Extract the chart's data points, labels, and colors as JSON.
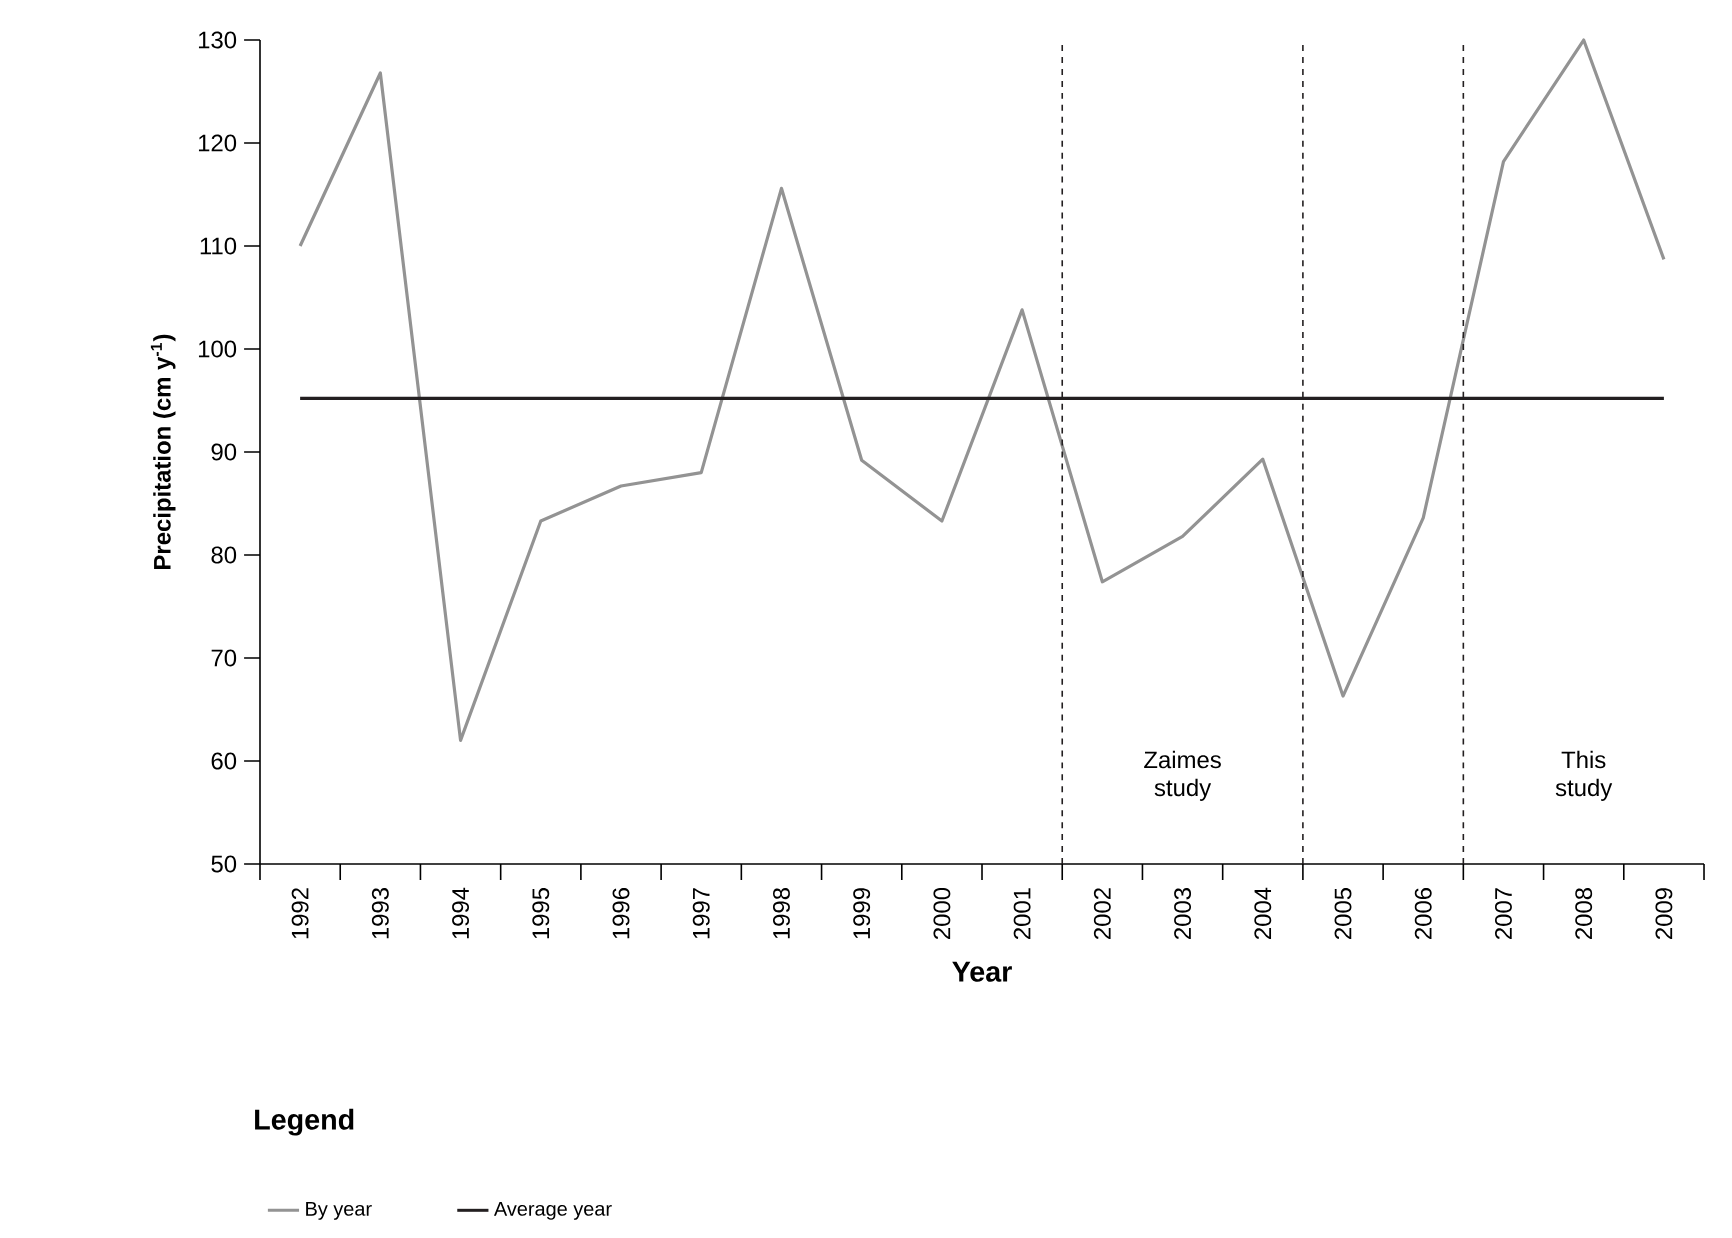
{
  "chart_data": {
    "type": "line",
    "xlabel": "Year",
    "ylabel": "**Precipitation (cm y$^{-1}$)**",
    "legend_title": "Legend",
    "x": [
      1992,
      1993,
      1994,
      1995,
      1996,
      1997,
      1998,
      1999,
      2000,
      2001,
      2002,
      2003,
      2004,
      2005,
      2006,
      2007,
      2008,
      2009
    ],
    "xlim": [
      1991.5,
      2009.5
    ],
    "xticks": [
      1992,
      1993,
      1994,
      1995,
      1996,
      1997,
      1998,
      1999,
      2000,
      2001,
      2002,
      2003,
      2004,
      2005,
      2006,
      2007,
      2008,
      2009
    ],
    "ylim": [
      50,
      130
    ],
    "yticks": [
      50,
      60,
      70,
      80,
      90,
      100,
      110,
      120,
      130
    ],
    "series": [
      {
        "name": "By year",
        "color": "#939393",
        "values": [
          110,
          126.8,
          62,
          83.3,
          86.7,
          88,
          115.6,
          89.2,
          83.3,
          103.8,
          77.4,
          81.8,
          89.3,
          66.3,
          83.6,
          118.2,
          130,
          108.7
        ]
      },
      {
        "name": "Average year",
        "color": "#231f20",
        "values": [
          95.2,
          95.2,
          95.2,
          95.2,
          95.2,
          95.2,
          95.2,
          95.2,
          95.2,
          95.2,
          95.2,
          95.2,
          95.2,
          95.2,
          95.2,
          95.2,
          95.2,
          95.2
        ]
      }
    ],
    "ref_lines": [
      {
        "axis": "x",
        "value": 2001.5,
        "color": "#231f20",
        "line_style": "dashed"
      },
      {
        "axis": "x",
        "value": 2004.5,
        "color": "#231f20",
        "line_style": "dashed"
      },
      {
        "axis": "x",
        "value": 2006.5,
        "color": "#231f20",
        "line_style": "dashed"
      }
    ],
    "annotations": [
      "Zaimes study",
      "This study"
    ],
    "legend": "bottom left",
    "grid": false,
    "marker": "none",
    "line_style": "solid"
  }
}
